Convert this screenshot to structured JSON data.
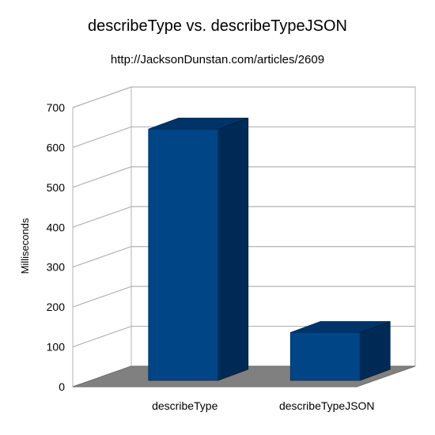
{
  "chart_data": {
    "type": "bar",
    "title": "describeType vs. describeTypeJSON",
    "subtitle": "http://JacksonDunstan.com/articles/2609",
    "xlabel": "",
    "ylabel": "Milliseconds",
    "categories": [
      "describeType",
      "describeTypeJSON"
    ],
    "values": [
      630,
      120
    ],
    "ylim": [
      0,
      700
    ],
    "yticks": [
      0,
      100,
      200,
      300,
      400,
      500,
      600,
      700
    ],
    "ytick_labels": [
      "0",
      "100",
      "200",
      "300",
      "400",
      "500",
      "600",
      "700"
    ],
    "grid": true,
    "legend": "none",
    "style": "3d",
    "colors": {
      "bar_front": "#004586",
      "bar_side": "#002a56",
      "bar_top": "#003468",
      "floor": "#808080",
      "grid": "#b3b3b3"
    }
  }
}
